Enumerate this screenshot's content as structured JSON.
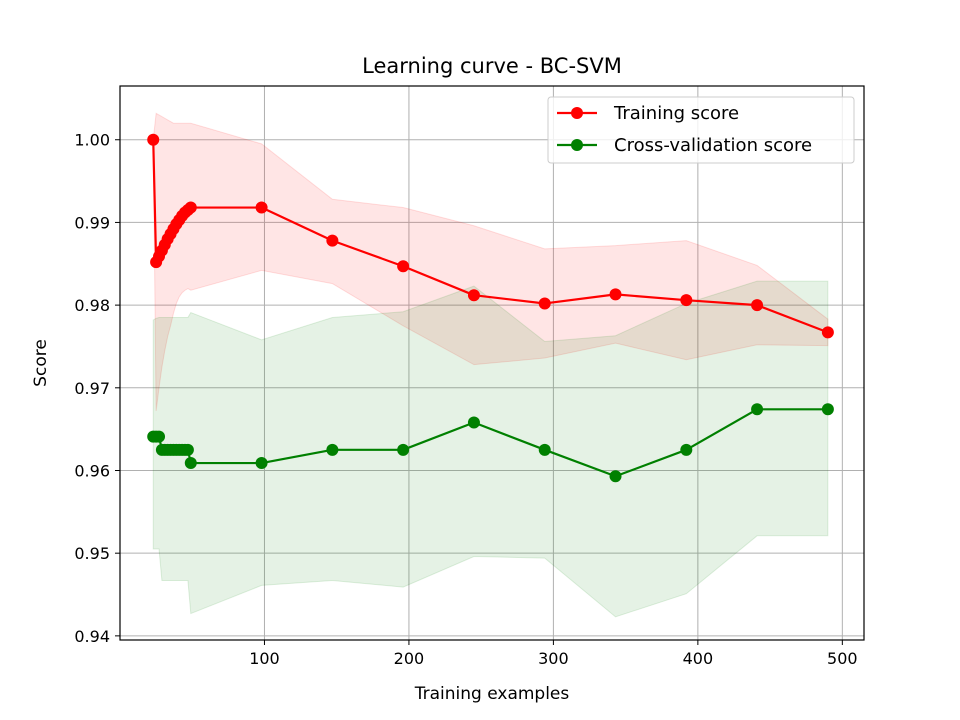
{
  "chart_data": {
    "type": "line",
    "title": "Learning curve - BC-SVM",
    "xlabel": "Training examples",
    "ylabel": "Score",
    "xlim": [
      0,
      515
    ],
    "ylim": [
      0.9395,
      1.0065
    ],
    "x_ticks": [
      100,
      200,
      300,
      400,
      500
    ],
    "y_ticks": [
      0.94,
      0.95,
      0.96,
      0.97,
      0.98,
      0.99,
      1.0
    ],
    "x_tick_labels": [
      "100",
      "200",
      "300",
      "400",
      "500"
    ],
    "y_tick_labels": [
      "0.94",
      "0.95",
      "0.96",
      "0.97",
      "0.98",
      "0.99",
      "1.00"
    ],
    "grid": true,
    "legend_position": "upper right",
    "x": [
      23,
      25,
      27,
      29,
      31,
      33,
      35,
      37,
      39,
      41,
      43,
      45,
      47,
      49,
      98,
      147,
      196,
      245,
      294,
      343,
      392,
      441,
      490
    ],
    "series": [
      {
        "name": "Training score",
        "color": "#ff0000",
        "fill_color": "#ff0000",
        "values": [
          1.0,
          0.9852,
          0.9859,
          0.9866,
          0.9873,
          0.988,
          0.9886,
          0.9892,
          0.9898,
          0.9903,
          0.9908,
          0.9912,
          0.9915,
          0.9918,
          0.9918,
          0.9878,
          0.9847,
          0.9812,
          0.9802,
          0.9813,
          0.9806,
          0.98,
          0.9767
        ],
        "band_upper": [
          1.0,
          1.0032,
          1.003,
          1.0028,
          1.0026,
          1.0024,
          1.0022,
          1.002,
          1.002,
          1.002,
          1.002,
          1.002,
          1.002,
          1.002,
          0.9995,
          0.9928,
          0.9918,
          0.9896,
          0.9868,
          0.9872,
          0.9878,
          0.9848,
          0.9783
        ],
        "band_lower": [
          1.0,
          0.9672,
          0.97,
          0.9725,
          0.9745,
          0.9762,
          0.9775,
          0.979,
          0.9802,
          0.981,
          0.9815,
          0.9818,
          0.982,
          0.9818,
          0.9842,
          0.9826,
          0.9775,
          0.9728,
          0.9736,
          0.9754,
          0.9734,
          0.9752,
          0.9751
        ]
      },
      {
        "name": "Cross-validation score",
        "color": "#008000",
        "fill_color": "#008000",
        "values": [
          0.9641,
          0.9641,
          0.9641,
          0.9625,
          0.9625,
          0.9625,
          0.9625,
          0.9625,
          0.9625,
          0.9625,
          0.9625,
          0.9625,
          0.9625,
          0.9609,
          0.9609,
          0.9625,
          0.9625,
          0.9658,
          0.9625,
          0.9593,
          0.9625,
          0.9674,
          0.9674
        ],
        "band_upper": [
          0.9782,
          0.9784,
          0.9785,
          0.9785,
          0.9785,
          0.9785,
          0.9785,
          0.9785,
          0.9785,
          0.9785,
          0.9785,
          0.9785,
          0.9785,
          0.9791,
          0.9758,
          0.9785,
          0.9792,
          0.9823,
          0.9756,
          0.9763,
          0.9802,
          0.9829,
          0.9829
        ],
        "band_lower": [
          0.9505,
          0.9505,
          0.9505,
          0.9467,
          0.9467,
          0.9467,
          0.9467,
          0.9467,
          0.9467,
          0.9467,
          0.9467,
          0.9467,
          0.9467,
          0.9427,
          0.9461,
          0.9467,
          0.9459,
          0.9496,
          0.9494,
          0.9423,
          0.9451,
          0.9521,
          0.9521
        ]
      }
    ]
  }
}
